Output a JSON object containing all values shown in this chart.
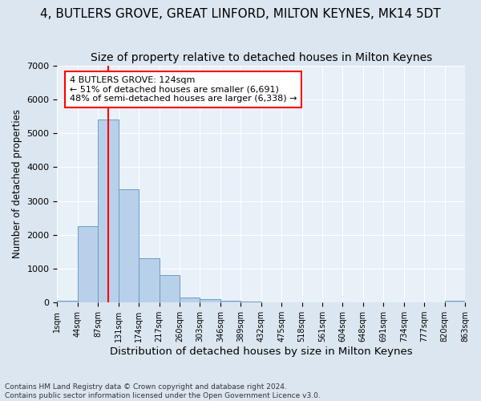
{
  "title": "4, BUTLERS GROVE, GREAT LINFORD, MILTON KEYNES, MK14 5DT",
  "subtitle": "Size of property relative to detached houses in Milton Keynes",
  "xlabel": "Distribution of detached houses by size in Milton Keynes",
  "ylabel": "Number of detached properties",
  "footer_line1": "Contains HM Land Registry data © Crown copyright and database right 2024.",
  "footer_line2": "Contains public sector information licensed under the Open Government Licence v3.0.",
  "tick_labels": [
    "1sqm",
    "44sqm",
    "87sqm",
    "131sqm",
    "174sqm",
    "217sqm",
    "260sqm",
    "303sqm",
    "346sqm",
    "389sqm",
    "432sqm",
    "475sqm",
    "518sqm",
    "561sqm",
    "604sqm",
    "648sqm",
    "691sqm",
    "734sqm",
    "777sqm",
    "820sqm",
    "863sqm"
  ],
  "bar_values": [
    50,
    2250,
    5400,
    3350,
    1300,
    800,
    150,
    100,
    50,
    20,
    0,
    0,
    0,
    0,
    0,
    0,
    0,
    0,
    0,
    50
  ],
  "bar_color": "#b8d0ea",
  "bar_edgecolor": "#6b9dc2",
  "vline_x": 2.5,
  "vline_color": "red",
  "annotation_text": "4 BUTLERS GROVE: 124sqm\n← 51% of detached houses are smaller (6,691)\n48% of semi-detached houses are larger (6,338) →",
  "annotation_box_color": "white",
  "annotation_box_edgecolor": "red",
  "ylim": [
    0,
    7000
  ],
  "yticks": [
    0,
    1000,
    2000,
    3000,
    4000,
    5000,
    6000,
    7000
  ],
  "bg_color": "#dce6f0",
  "axes_bg_color": "#e8f0f8",
  "grid_color": "white",
  "title_fontsize": 11,
  "subtitle_fontsize": 10,
  "xlabel_fontsize": 9.5,
  "ylabel_fontsize": 8.5
}
